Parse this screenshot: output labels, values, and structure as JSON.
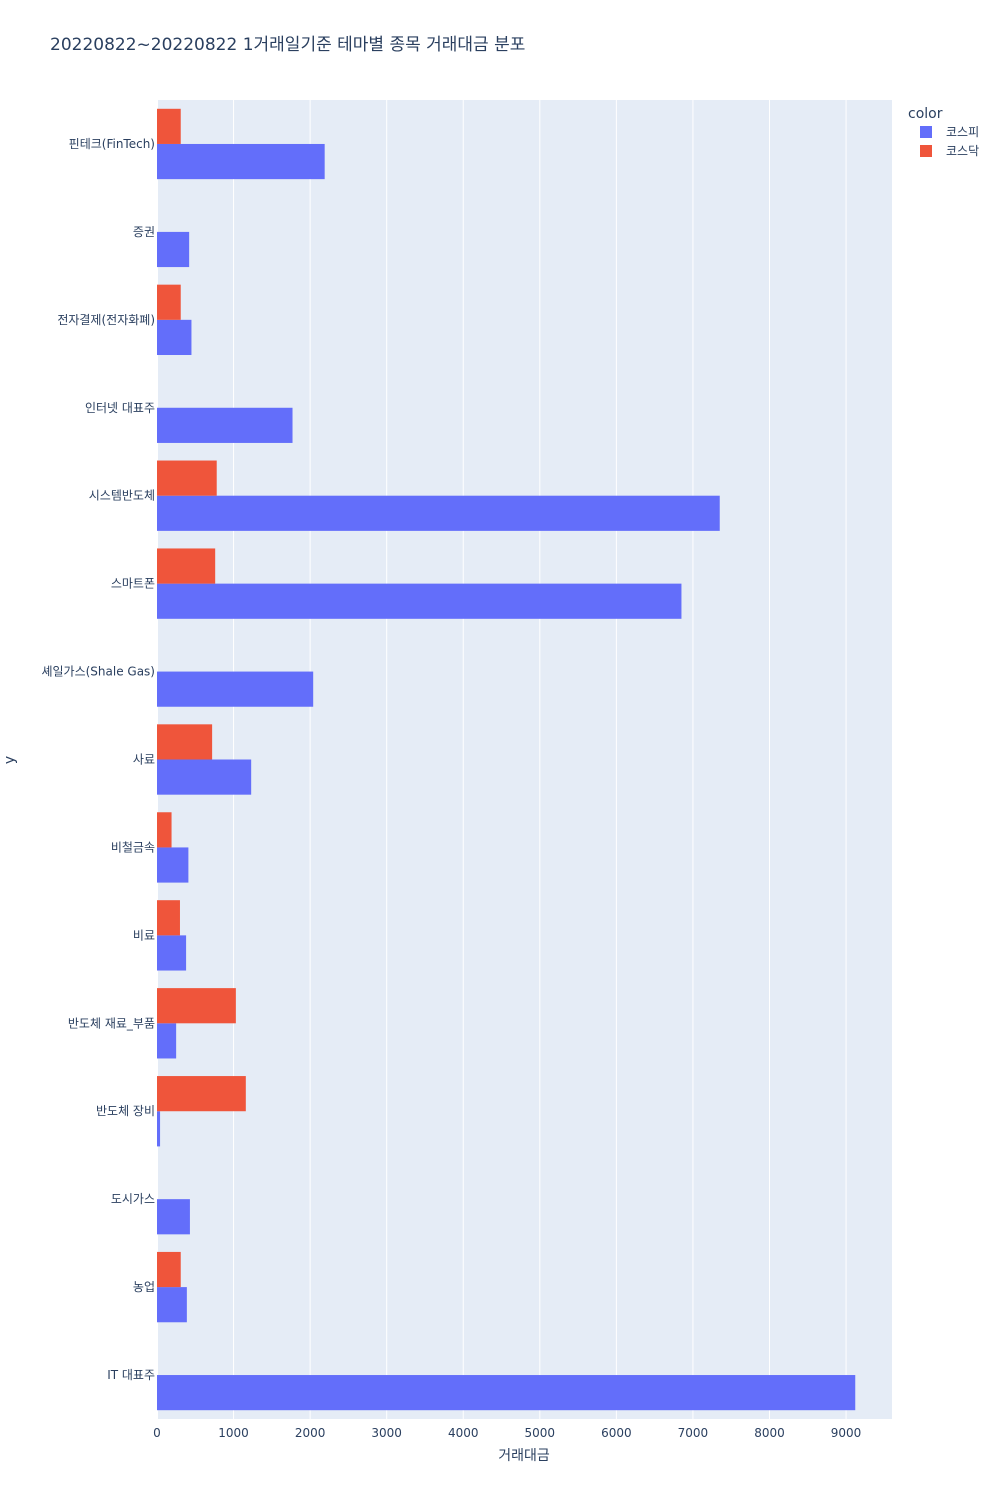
{
  "chart_data": {
    "type": "bar",
    "orientation": "horizontal",
    "barmode": "group",
    "title": "20220822~20220822 1거래일기준 테마별 종목 거래대금 분포",
    "xlabel": "거래대금",
    "ylabel": "y",
    "xlim": [
      0,
      9600
    ],
    "xticks": [
      0,
      1000,
      2000,
      3000,
      4000,
      5000,
      6000,
      7000,
      8000,
      9000
    ],
    "grid": true,
    "legend": {
      "title": "color",
      "position": "top-right"
    },
    "categories": [
      "핀테크(FinTech)",
      "증권",
      "전자결제(전자화폐)",
      "인터넷 대표주",
      "시스템반도체",
      "스마트폰",
      "셰일가스(Shale Gas)",
      "사료",
      "비철금속",
      "비료",
      "반도체 재료_부품",
      "반도체 장비",
      "도시가스",
      "농업",
      "IT 대표주"
    ],
    "series": [
      {
        "name": "코스피",
        "color": "#636efa",
        "values": [
          2190,
          420,
          450,
          1770,
          7350,
          6850,
          2040,
          1230,
          410,
          380,
          250,
          40,
          430,
          390,
          9120
        ]
      },
      {
        "name": "코스닥",
        "color": "#ef553b",
        "values": [
          310,
          0,
          310,
          0,
          780,
          760,
          0,
          720,
          190,
          300,
          1030,
          1160,
          0,
          310,
          0
        ]
      }
    ]
  }
}
